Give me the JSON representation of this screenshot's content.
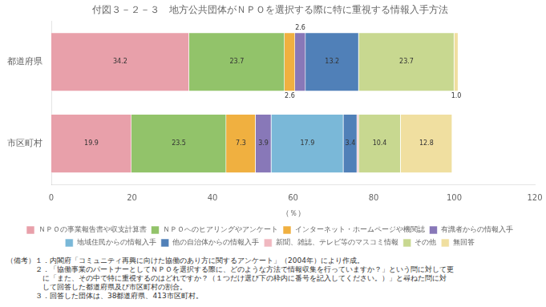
{
  "chart_data": {
    "type": "bar",
    "orientation": "horizontal",
    "stacked": true,
    "title": "付図３－２－３　地方公共団体がＮＰＯを選択する際に特に重視する情報入手方法",
    "xlabel": "（％）",
    "categories": [
      "都道府県",
      "市区町村"
    ],
    "series": [
      {
        "name": "ＮＰＯの事業報告書や収支計算書",
        "color": "#e8a0aa",
        "values": [
          34.2,
          19.9
        ],
        "value_labels": [
          "34.2",
          "19.9"
        ]
      },
      {
        "name": "ＮＰＯへのヒアリングやアンケート",
        "color": "#92c36a",
        "values": [
          23.7,
          23.5
        ],
        "value_labels": [
          "23.7",
          "23.5"
        ]
      },
      {
        "name": "インターネット・ホームページや機関誌",
        "color": "#f0b040",
        "values": [
          2.6,
          7.3
        ],
        "value_labels": [
          "2.6",
          "7.3"
        ]
      },
      {
        "name": "有識者からの情報入手",
        "color": "#8878b8",
        "values": [
          2.6,
          3.9
        ],
        "value_labels": [
          "2.6",
          "3.9"
        ]
      },
      {
        "name": "地域住民からの情報入手",
        "color": "#7ab8d8",
        "values": [
          0.0,
          17.9
        ],
        "value_labels": [
          null,
          "17.9"
        ]
      },
      {
        "name": "他の自治体からの情報入手",
        "color": "#5080b8",
        "values": [
          13.2,
          3.4
        ],
        "value_labels": [
          "13.2",
          "3.4"
        ]
      },
      {
        "name": "新聞、雑誌、テレビ等のマスコミ情報",
        "color": "#f0b8c0",
        "values": [
          0.0,
          0.4
        ],
        "value_labels": [
          null,
          null
        ]
      },
      {
        "name": "その他",
        "color": "#c8d890",
        "values": [
          23.7,
          10.4
        ],
        "value_labels": [
          "23.7",
          "10.4"
        ]
      },
      {
        "name": "無回答",
        "color": "#f0dfa0",
        "values": [
          1.0,
          12.8
        ],
        "value_labels": [
          "1.0",
          "12.8"
        ]
      }
    ],
    "xlim": [
      0,
      120
    ],
    "xticks": [
      0,
      20,
      40,
      60,
      80,
      100,
      120
    ],
    "grid": false,
    "legend": "bottom",
    "data_labels": true,
    "notes": [
      "（備考）１．内閣府「コミュニティ再興に向けた協働のあり方に関するアンケート」（2004年）により作成。",
      "　　　　２．「協働事業のパートナーとしてＮＰＯを選択する際に、どのような方法で情報収集を行っていますか？」という問に対して更",
      "　　　　　に「また、その中で特に重視するのはどれですか？（１つだけ選び下の枠内に番号を記入してください。）」と尋ねた問に対",
      "　　　　　して回答した都道府県及び市区町村の割合。",
      "　　　　３．回答した団体は、38都道府県、413市区町村。"
    ]
  }
}
